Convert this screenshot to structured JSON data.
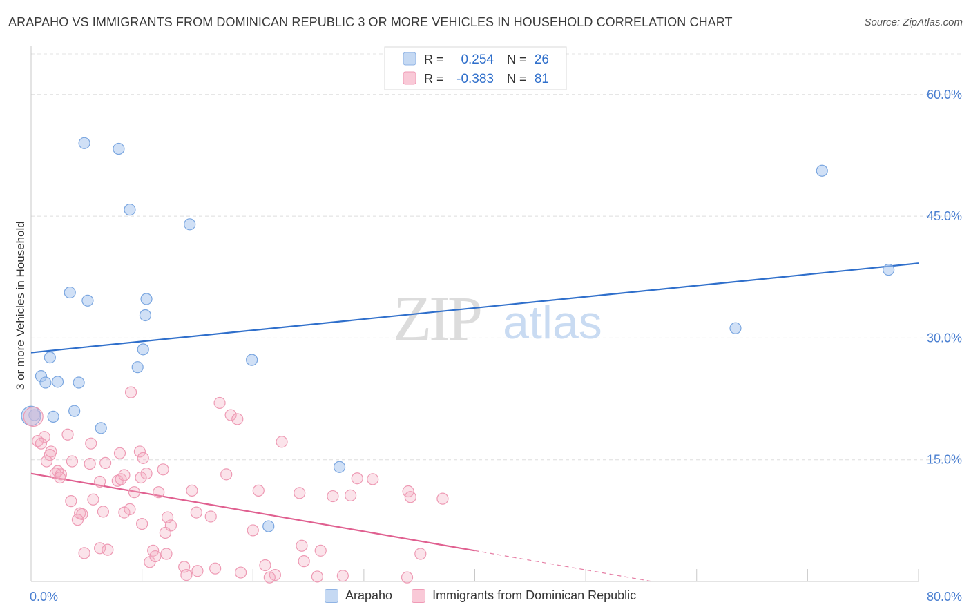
{
  "chart_data": {
    "type": "scatter",
    "title": "ARAPAHO VS IMMIGRANTS FROM DOMINICAN REPUBLIC 3 OR MORE VEHICLES IN HOUSEHOLD CORRELATION CHART",
    "source": "Source: ZipAtlas.com",
    "ylabel": "3 or more Vehicles in Household",
    "xlim": [
      0,
      80
    ],
    "ylim": [
      0,
      65
    ],
    "x_tick_labels": [
      "0.0%",
      "80.0%"
    ],
    "y_ticks": [
      15,
      30,
      45,
      60
    ],
    "y_tick_labels": [
      "15.0%",
      "30.0%",
      "45.0%",
      "60.0%"
    ],
    "watermark": {
      "zip": "ZIP",
      "atlas": "atlas"
    },
    "legend": {
      "r_label": "R =",
      "n_label": "N =",
      "rows": [
        {
          "r": "0.254",
          "n": "26"
        },
        {
          "r": "-0.383",
          "n": "81"
        }
      ]
    },
    "series": [
      {
        "name": "Arapaho",
        "color": "#a9c7ee",
        "line_color": "#2f6fcb",
        "trend": {
          "x0": 0,
          "y0": 28.2,
          "x1": 80,
          "y1": 39.2,
          "dash_from": null
        },
        "points": [
          [
            4.8,
            54.0
          ],
          [
            7.9,
            53.3
          ],
          [
            8.9,
            45.8
          ],
          [
            14.3,
            44.0
          ],
          [
            71.3,
            50.6
          ],
          [
            77.3,
            38.4
          ],
          [
            3.5,
            35.6
          ],
          [
            5.1,
            34.6
          ],
          [
            10.4,
            34.8
          ],
          [
            10.3,
            32.8
          ],
          [
            63.5,
            31.2
          ],
          [
            10.1,
            28.6
          ],
          [
            1.7,
            27.6
          ],
          [
            19.9,
            27.3
          ],
          [
            9.6,
            26.4
          ],
          [
            0.9,
            25.3
          ],
          [
            1.3,
            24.5
          ],
          [
            2.4,
            24.6
          ],
          [
            4.3,
            24.5
          ],
          [
            0.3,
            20.5
          ],
          [
            2.0,
            20.3
          ],
          [
            3.9,
            21.0
          ],
          [
            6.3,
            18.9
          ],
          [
            27.8,
            14.1
          ],
          [
            21.4,
            6.8
          ],
          [
            0.0,
            20.4
          ]
        ]
      },
      {
        "name": "Immigrants from Dominican Republic",
        "color": "#f4afc4",
        "line_color": "#e06090",
        "trend": {
          "x0": 0,
          "y0": 13.3,
          "x1": 56,
          "y1": 0.0,
          "dash_from": 40
        },
        "points": [
          [
            0.2,
            20.3
          ],
          [
            1.2,
            17.8
          ],
          [
            0.6,
            17.3
          ],
          [
            0.9,
            17.0
          ],
          [
            3.3,
            18.1
          ],
          [
            1.8,
            16.0
          ],
          [
            1.7,
            15.6
          ],
          [
            1.4,
            14.8
          ],
          [
            2.4,
            13.6
          ],
          [
            2.2,
            13.3
          ],
          [
            2.7,
            13.2
          ],
          [
            2.6,
            12.8
          ],
          [
            3.7,
            14.8
          ],
          [
            5.3,
            14.5
          ],
          [
            5.4,
            17.0
          ],
          [
            6.7,
            14.6
          ],
          [
            7.8,
            12.4
          ],
          [
            6.2,
            12.3
          ],
          [
            8.1,
            12.6
          ],
          [
            8.4,
            13.1
          ],
          [
            8.0,
            15.8
          ],
          [
            9.8,
            16.0
          ],
          [
            10.1,
            15.2
          ],
          [
            9.0,
            23.3
          ],
          [
            10.4,
            13.3
          ],
          [
            11.9,
            13.8
          ],
          [
            9.9,
            12.8
          ],
          [
            17.0,
            22.0
          ],
          [
            18.0,
            20.5
          ],
          [
            18.6,
            20.0
          ],
          [
            17.6,
            13.2
          ],
          [
            11.5,
            11.0
          ],
          [
            9.3,
            11.0
          ],
          [
            14.5,
            11.2
          ],
          [
            20.5,
            11.2
          ],
          [
            24.2,
            10.9
          ],
          [
            27.2,
            10.5
          ],
          [
            28.8,
            10.6
          ],
          [
            29.4,
            12.7
          ],
          [
            30.8,
            12.6
          ],
          [
            34.0,
            11.1
          ],
          [
            34.2,
            10.4
          ],
          [
            37.1,
            10.2
          ],
          [
            22.6,
            17.2
          ],
          [
            3.6,
            9.9
          ],
          [
            5.6,
            10.1
          ],
          [
            4.4,
            8.4
          ],
          [
            4.6,
            8.3
          ],
          [
            6.5,
            8.6
          ],
          [
            8.4,
            8.5
          ],
          [
            8.9,
            8.9
          ],
          [
            4.2,
            7.6
          ],
          [
            10.0,
            7.1
          ],
          [
            12.6,
            6.9
          ],
          [
            12.3,
            7.9
          ],
          [
            14.9,
            8.5
          ],
          [
            16.2,
            8.0
          ],
          [
            20.0,
            6.3
          ],
          [
            12.1,
            6.0
          ],
          [
            4.8,
            3.5
          ],
          [
            6.2,
            4.1
          ],
          [
            6.9,
            3.9
          ],
          [
            10.7,
            2.4
          ],
          [
            11.0,
            3.8
          ],
          [
            11.2,
            3.1
          ],
          [
            12.2,
            3.4
          ],
          [
            13.8,
            1.8
          ],
          [
            14.0,
            0.8
          ],
          [
            15.0,
            1.3
          ],
          [
            16.6,
            1.6
          ],
          [
            18.9,
            1.1
          ],
          [
            21.1,
            2.0
          ],
          [
            22.0,
            0.8
          ],
          [
            21.5,
            0.5
          ],
          [
            24.4,
            4.4
          ],
          [
            24.6,
            2.5
          ],
          [
            25.8,
            0.6
          ],
          [
            26.1,
            3.8
          ],
          [
            28.1,
            0.7
          ],
          [
            33.9,
            0.5
          ],
          [
            35.1,
            3.4
          ]
        ]
      }
    ]
  }
}
